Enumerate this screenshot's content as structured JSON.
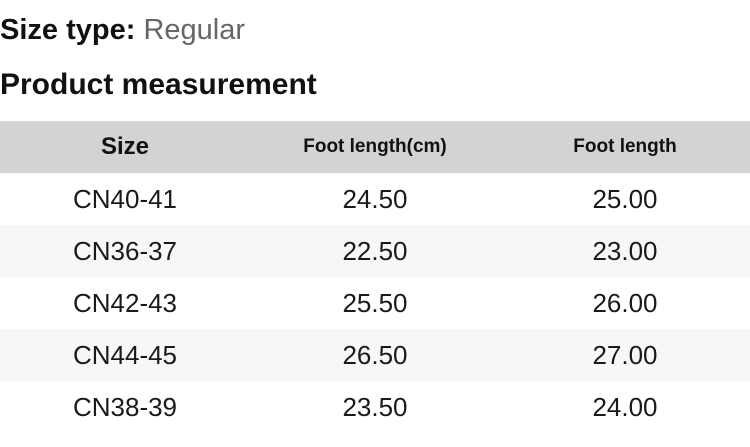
{
  "size_type": {
    "label": "Size type:",
    "value": "Regular"
  },
  "section": {
    "title": "Product measurement"
  },
  "table": {
    "headers": [
      "Size",
      "Foot length(cm)",
      "Foot length"
    ],
    "rows": [
      [
        "CN40-41",
        "24.50",
        "25.00"
      ],
      [
        "CN36-37",
        "22.50",
        "23.00"
      ],
      [
        "CN42-43",
        "25.50",
        "26.00"
      ],
      [
        "CN44-45",
        "26.50",
        "27.00"
      ],
      [
        "CN38-39",
        "23.50",
        "24.00"
      ]
    ]
  },
  "colors": {
    "header_bg": "#d3d3d3",
    "alt_row_bg": "#f7f7f7",
    "heading_text": "#111111",
    "muted_text": "#666666"
  }
}
